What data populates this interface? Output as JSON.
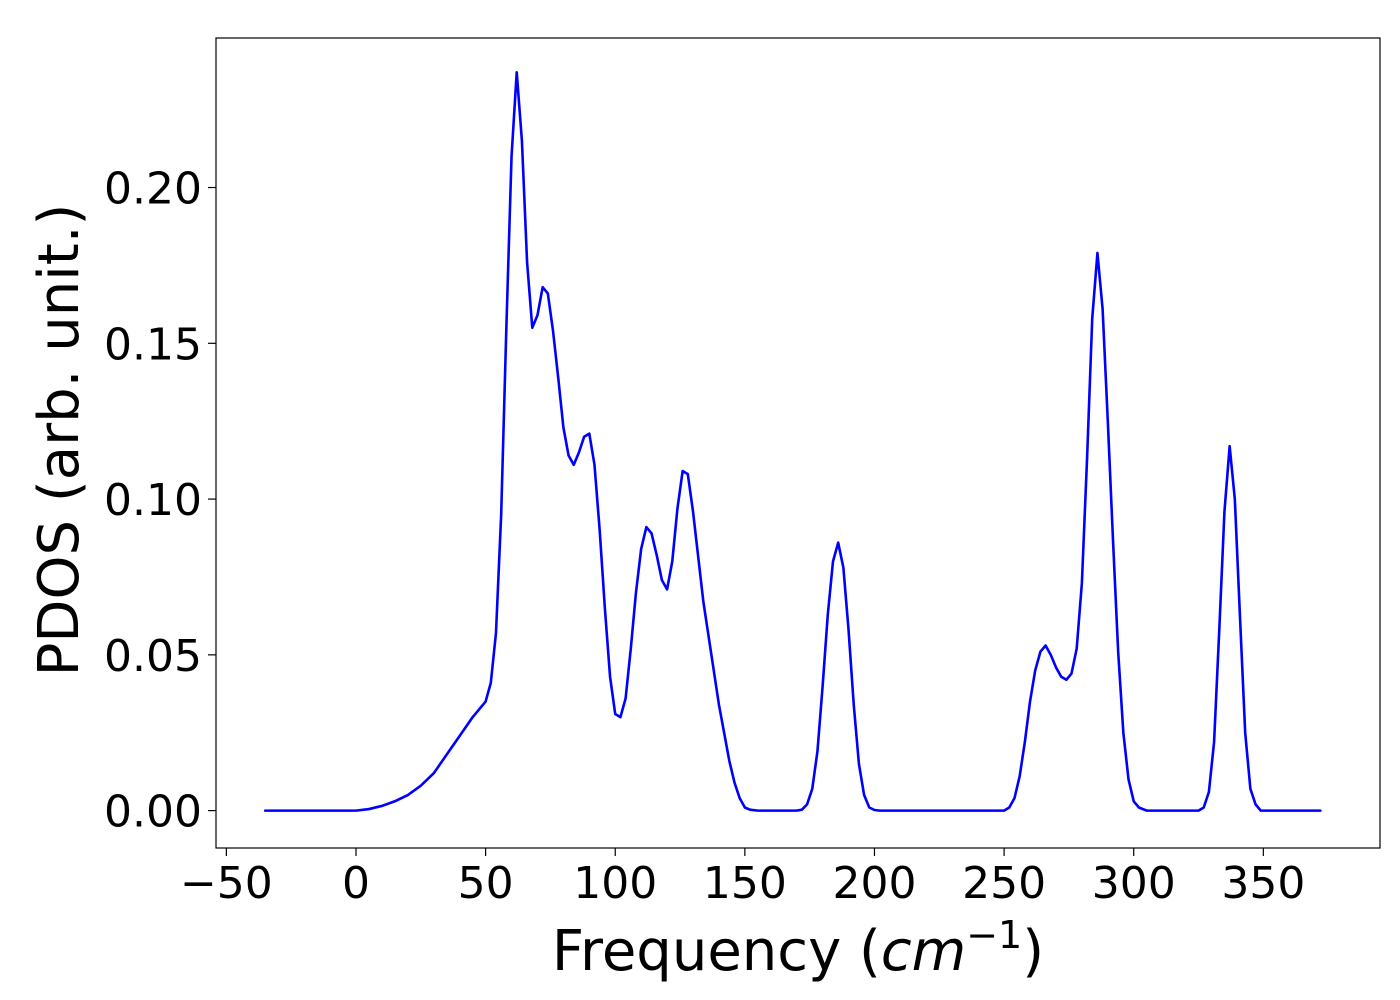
{
  "chart_data": {
    "type": "line",
    "title": "",
    "xlabel": "Frequency (cm⁻¹)",
    "xlabel_parts": {
      "prefix": "Frequency (",
      "unit": "cm",
      "exponent": "−1",
      "suffix": ")"
    },
    "ylabel": "PDOS (arb. unit.)",
    "xlim": [
      -54,
      395
    ],
    "ylim": [
      -0.012,
      0.248
    ],
    "xticks": [
      -50,
      0,
      50,
      100,
      150,
      200,
      250,
      300,
      350
    ],
    "xtick_labels": [
      "−50",
      "0",
      "50",
      "100",
      "150",
      "200",
      "250",
      "300",
      "350"
    ],
    "yticks": [
      0.0,
      0.05,
      0.1,
      0.15,
      0.2
    ],
    "ytick_labels": [
      "0.00",
      "0.05",
      "0.10",
      "0.15",
      "0.20"
    ],
    "grid": false,
    "legend": false,
    "series": [
      {
        "color": "#0000ff",
        "x": [
          -35,
          -20,
          -10,
          0,
          5,
          10,
          15,
          20,
          25,
          30,
          35,
          40,
          45,
          48,
          50,
          52,
          54,
          56,
          58,
          60,
          62,
          64,
          66,
          68,
          70,
          72,
          74,
          76,
          78,
          80,
          82,
          84,
          86,
          88,
          90,
          92,
          94,
          96,
          98,
          100,
          102,
          104,
          106,
          108,
          110,
          112,
          114,
          116,
          118,
          120,
          122,
          124,
          126,
          128,
          130,
          134,
          138,
          140,
          142,
          144,
          146,
          148,
          150,
          152,
          155,
          160,
          165,
          170,
          172,
          174,
          176,
          178,
          180,
          182,
          184,
          186,
          188,
          190,
          192,
          194,
          196,
          198,
          200,
          202,
          205,
          210,
          220,
          230,
          240,
          250,
          252,
          254,
          256,
          258,
          260,
          262,
          264,
          266,
          268,
          270,
          272,
          274,
          276,
          278,
          280,
          282,
          284,
          286,
          288,
          290,
          292,
          294,
          296,
          298,
          300,
          302,
          305,
          310,
          320,
          325,
          327,
          329,
          331,
          333,
          335,
          337,
          339,
          341,
          343,
          345,
          347,
          349,
          352,
          360,
          372
        ],
        "y": [
          0.0,
          0.0,
          0.0,
          0.0,
          0.0005,
          0.0015,
          0.003,
          0.005,
          0.008,
          0.012,
          0.018,
          0.024,
          0.03,
          0.033,
          0.035,
          0.041,
          0.057,
          0.095,
          0.155,
          0.21,
          0.237,
          0.215,
          0.176,
          0.155,
          0.159,
          0.168,
          0.166,
          0.154,
          0.139,
          0.123,
          0.114,
          0.111,
          0.115,
          0.12,
          0.121,
          0.111,
          0.09,
          0.065,
          0.043,
          0.031,
          0.03,
          0.036,
          0.052,
          0.07,
          0.084,
          0.091,
          0.089,
          0.082,
          0.074,
          0.071,
          0.08,
          0.097,
          0.109,
          0.108,
          0.096,
          0.067,
          0.045,
          0.034,
          0.025,
          0.016,
          0.009,
          0.004,
          0.001,
          0.0003,
          0.0,
          0.0,
          0.0,
          0.0,
          0.0003,
          0.002,
          0.007,
          0.019,
          0.04,
          0.063,
          0.08,
          0.086,
          0.078,
          0.058,
          0.034,
          0.015,
          0.005,
          0.001,
          0.0002,
          0.0,
          0.0,
          0.0,
          0.0,
          0.0,
          0.0,
          0.0,
          0.001,
          0.004,
          0.011,
          0.022,
          0.035,
          0.045,
          0.051,
          0.053,
          0.05,
          0.046,
          0.043,
          0.042,
          0.044,
          0.052,
          0.073,
          0.113,
          0.158,
          0.179,
          0.161,
          0.125,
          0.087,
          0.051,
          0.025,
          0.01,
          0.003,
          0.001,
          0.0,
          0.0,
          0.0,
          0.0,
          0.001,
          0.006,
          0.022,
          0.058,
          0.096,
          0.117,
          0.1,
          0.062,
          0.025,
          0.007,
          0.002,
          0.0,
          0.0,
          0.0,
          0.0
        ]
      }
    ]
  }
}
